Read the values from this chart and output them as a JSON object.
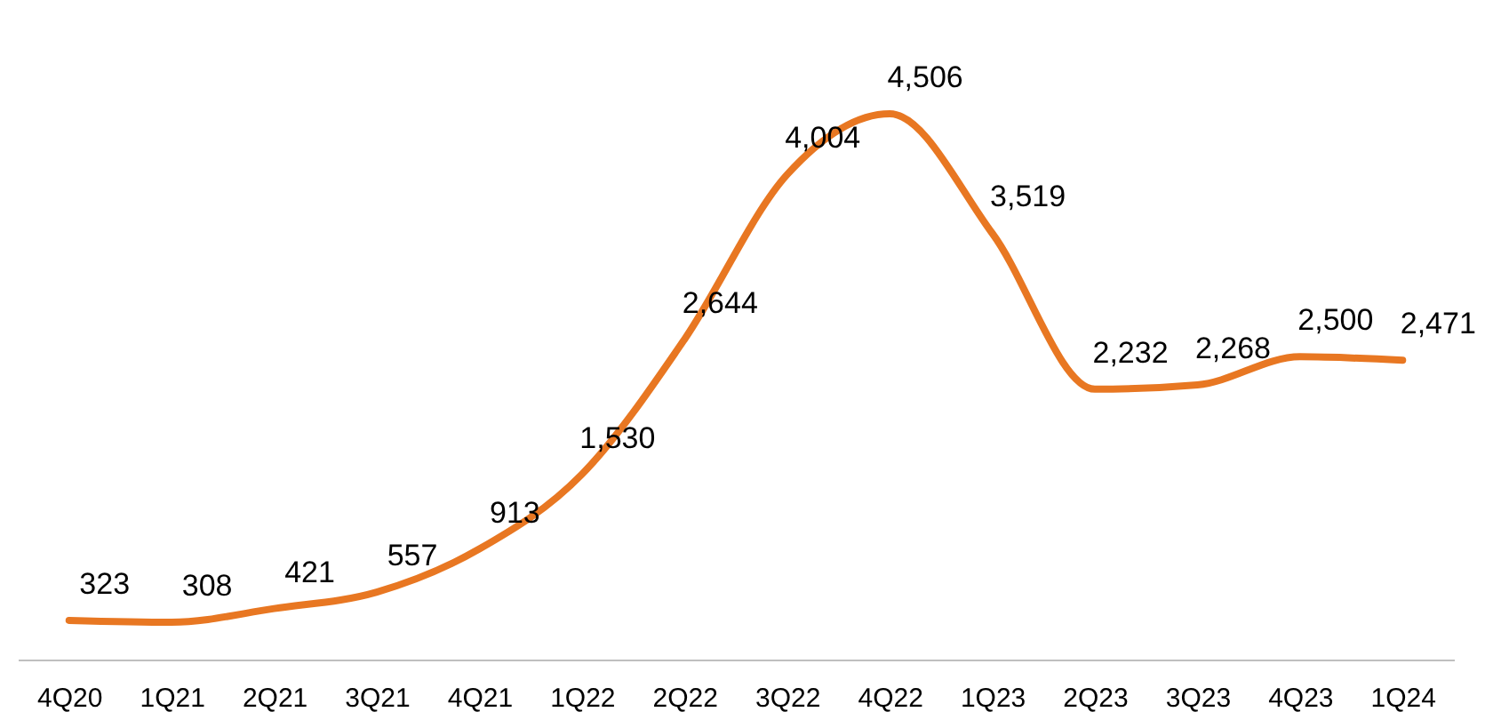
{
  "chart_data": {
    "type": "line",
    "categories": [
      "4Q20",
      "1Q21",
      "2Q21",
      "3Q21",
      "4Q21",
      "1Q22",
      "2Q22",
      "3Q22",
      "4Q22",
      "1Q23",
      "2Q23",
      "3Q23",
      "4Q23",
      "1Q24"
    ],
    "series": [
      {
        "color": "#e87722",
        "values": [
          323,
          308,
          421,
          557,
          913,
          1530,
          2644,
          4004,
          4506,
          3519,
          2232,
          2268,
          2500,
          2471
        ],
        "value_labels": [
          "323",
          "308",
          "421",
          "557",
          "913",
          "1,530",
          "2,644",
          "4,004",
          "4,506",
          "3,519",
          "2,232",
          "2,268",
          "2,500",
          "2,471"
        ]
      }
    ],
    "grid": false,
    "marker": "none",
    "line_style": "solid"
  }
}
